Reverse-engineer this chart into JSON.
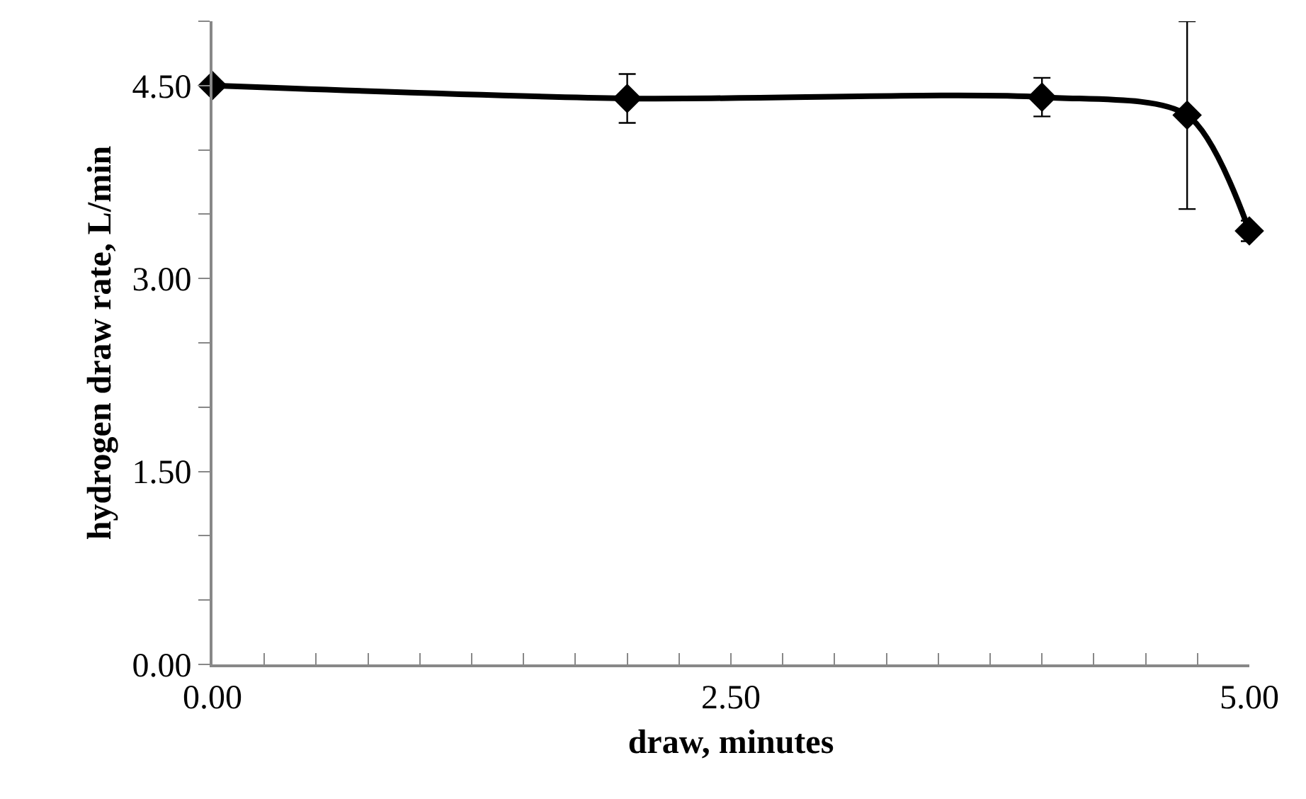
{
  "chart_data": {
    "type": "line",
    "xlabel": "draw, minutes",
    "ylabel": "hydrogen draw rate, L/min",
    "x": [
      0,
      2.0,
      4.0,
      4.7,
      5.0
    ],
    "series": [
      {
        "color": "#000000",
        "values": [
          4.5,
          4.4,
          4.41,
          4.27,
          3.37
        ],
        "errors": [
          null,
          0.19,
          0.15,
          0.73,
          0.08
        ]
      }
    ],
    "xlim": [
      0,
      5
    ],
    "ylim": [
      0,
      5
    ],
    "xticks": [
      {
        "value": 0,
        "label": "0.00"
      },
      {
        "value": 0.25,
        "label": null
      },
      {
        "value": 0.5,
        "label": null
      },
      {
        "value": 0.75,
        "label": null
      },
      {
        "value": 1,
        "label": null
      },
      {
        "value": 1.25,
        "label": null
      },
      {
        "value": 1.5,
        "label": null
      },
      {
        "value": 1.75,
        "label": null
      },
      {
        "value": 2,
        "label": null
      },
      {
        "value": 2.25,
        "label": null
      },
      {
        "value": 2.5,
        "label": "2.50"
      },
      {
        "value": 2.75,
        "label": null
      },
      {
        "value": 3,
        "label": null
      },
      {
        "value": 3.25,
        "label": null
      },
      {
        "value": 3.5,
        "label": null
      },
      {
        "value": 3.75,
        "label": null
      },
      {
        "value": 4,
        "label": null
      },
      {
        "value": 4.25,
        "label": null
      },
      {
        "value": 4.5,
        "label": null
      },
      {
        "value": 4.75,
        "label": null
      },
      {
        "value": 5,
        "label": "5.00"
      }
    ],
    "yticks": [
      {
        "value": 0,
        "label": "0.00"
      },
      {
        "value": 0.5,
        "label": null
      },
      {
        "value": 1,
        "label": null
      },
      {
        "value": 1.5,
        "label": "1.50"
      },
      {
        "value": 2,
        "label": null
      },
      {
        "value": 2.5,
        "label": null
      },
      {
        "value": 3,
        "label": "3.00"
      },
      {
        "value": 3.5,
        "label": null
      },
      {
        "value": 4,
        "label": null
      },
      {
        "value": 4.5,
        "label": "4.50"
      },
      {
        "value": 5,
        "label": null
      }
    ],
    "marker": "diamond",
    "line_style": "solid"
  }
}
